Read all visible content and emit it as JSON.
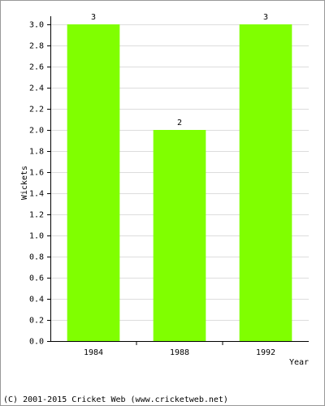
{
  "chart_data": {
    "type": "bar",
    "categories": [
      "1984",
      "1988",
      "1992"
    ],
    "values": [
      3,
      2,
      3
    ],
    "color": "#80ff00",
    "y_label": "Wickets",
    "x_label": "Year",
    "footer": "(C) 2001-2015 Cricket Web (www.cricketweb.net)",
    "ylim": [
      0,
      3
    ],
    "yticks": [
      {
        "value": 0,
        "label": "0.0"
      },
      0.2,
      0.4,
      0.6,
      0.8,
      {
        "value": 1,
        "label": "1.0"
      },
      1.2,
      1.4,
      1.6,
      1.8,
      {
        "value": 2,
        "label": "2.0"
      },
      2.2,
      2.4,
      2.6,
      2.8,
      {
        "value": 3,
        "label": "3.0"
      }
    ],
    "grid": true
  }
}
